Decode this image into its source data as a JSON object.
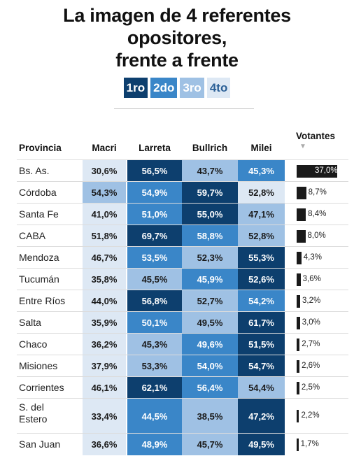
{
  "title_lines": [
    "La imagen de 4 referentes",
    "opositores,",
    "frente a frente"
  ],
  "legend": [
    {
      "label": "1ro",
      "bg": "#0d3f6e",
      "fg": "#ffffff"
    },
    {
      "label": "2do",
      "bg": "#3a86c8",
      "fg": "#ffffff"
    },
    {
      "label": "3ro",
      "bg": "#9fc1e4",
      "fg": "#ffffff"
    },
    {
      "label": "4to",
      "bg": "#dde8f4",
      "fg": "#2a5f96"
    }
  ],
  "headers": {
    "provincia": "Provincia",
    "macri": "Macri",
    "larreta": "Larreta",
    "bullrich": "Bullrich",
    "milei": "Milei",
    "votantes": "Votantes"
  },
  "chart_data": {
    "type": "table",
    "columns": [
      "Provincia",
      "Macri",
      "Larreta",
      "Bullrich",
      "Milei",
      "Votantes"
    ],
    "rank_colors": [
      "#0d3f6e",
      "#3a86c8",
      "#9fc1e4",
      "#dde8f4"
    ],
    "rows": [
      {
        "provincia": "Bs. As.",
        "values": [
          "30,6%",
          "56,5%",
          "43,7%",
          "45,3%"
        ],
        "ranks": [
          4,
          1,
          3,
          2
        ],
        "votantes": "37,0%",
        "votantes_value": 37.0
      },
      {
        "provincia": "Córdoba",
        "values": [
          "54,3%",
          "54,9%",
          "59,7%",
          "52,8%"
        ],
        "ranks": [
          3,
          2,
          1,
          4
        ],
        "votantes": "8,7%",
        "votantes_value": 8.7
      },
      {
        "provincia": "Santa Fe",
        "values": [
          "41,0%",
          "51,0%",
          "55,0%",
          "47,1%"
        ],
        "ranks": [
          4,
          2,
          1,
          3
        ],
        "votantes": "8,4%",
        "votantes_value": 8.4
      },
      {
        "provincia": "CABA",
        "values": [
          "51,8%",
          "69,7%",
          "58,8%",
          "52,8%"
        ],
        "ranks": [
          4,
          1,
          2,
          3
        ],
        "votantes": "8,0%",
        "votantes_value": 8.0
      },
      {
        "provincia": "Mendoza",
        "values": [
          "46,7%",
          "53,5%",
          "52,3%",
          "55,3%"
        ],
        "ranks": [
          4,
          2,
          3,
          1
        ],
        "votantes": "4,3%",
        "votantes_value": 4.3
      },
      {
        "provincia": "Tucumán",
        "values": [
          "35,8%",
          "45,5%",
          "45,9%",
          "52,6%"
        ],
        "ranks": [
          4,
          3,
          2,
          1
        ],
        "votantes": "3,6%",
        "votantes_value": 3.6
      },
      {
        "provincia": "Entre Ríos",
        "values": [
          "44,0%",
          "56,8%",
          "52,7%",
          "54,2%"
        ],
        "ranks": [
          4,
          1,
          3,
          2
        ],
        "votantes": "3,2%",
        "votantes_value": 3.2
      },
      {
        "provincia": "Salta",
        "values": [
          "35,9%",
          "50,1%",
          "49,5%",
          "61,7%"
        ],
        "ranks": [
          4,
          2,
          3,
          1
        ],
        "votantes": "3,0%",
        "votantes_value": 3.0
      },
      {
        "provincia": "Chaco",
        "values": [
          "36,2%",
          "45,3%",
          "49,6%",
          "51,5%"
        ],
        "ranks": [
          4,
          3,
          2,
          1
        ],
        "votantes": "2,7%",
        "votantes_value": 2.7
      },
      {
        "provincia": "Misiones",
        "values": [
          "37,9%",
          "53,3%",
          "54,0%",
          "54,7%"
        ],
        "ranks": [
          4,
          3,
          2,
          1
        ],
        "votantes": "2,6%",
        "votantes_value": 2.6
      },
      {
        "provincia": "Corrientes",
        "values": [
          "46,1%",
          "62,1%",
          "56,4%",
          "54,4%"
        ],
        "ranks": [
          4,
          1,
          2,
          3
        ],
        "votantes": "2,5%",
        "votantes_value": 2.5
      },
      {
        "provincia": "S. del Estero",
        "values": [
          "33,4%",
          "44,5%",
          "38,5%",
          "47,2%"
        ],
        "ranks": [
          4,
          2,
          3,
          1
        ],
        "votantes": "2,2%",
        "votantes_value": 2.2
      },
      {
        "provincia": "San Juan",
        "values": [
          "36,6%",
          "48,9%",
          "45,7%",
          "49,5%"
        ],
        "ranks": [
          4,
          2,
          3,
          1
        ],
        "votantes": "1,7%",
        "votantes_value": 1.7
      }
    ]
  }
}
